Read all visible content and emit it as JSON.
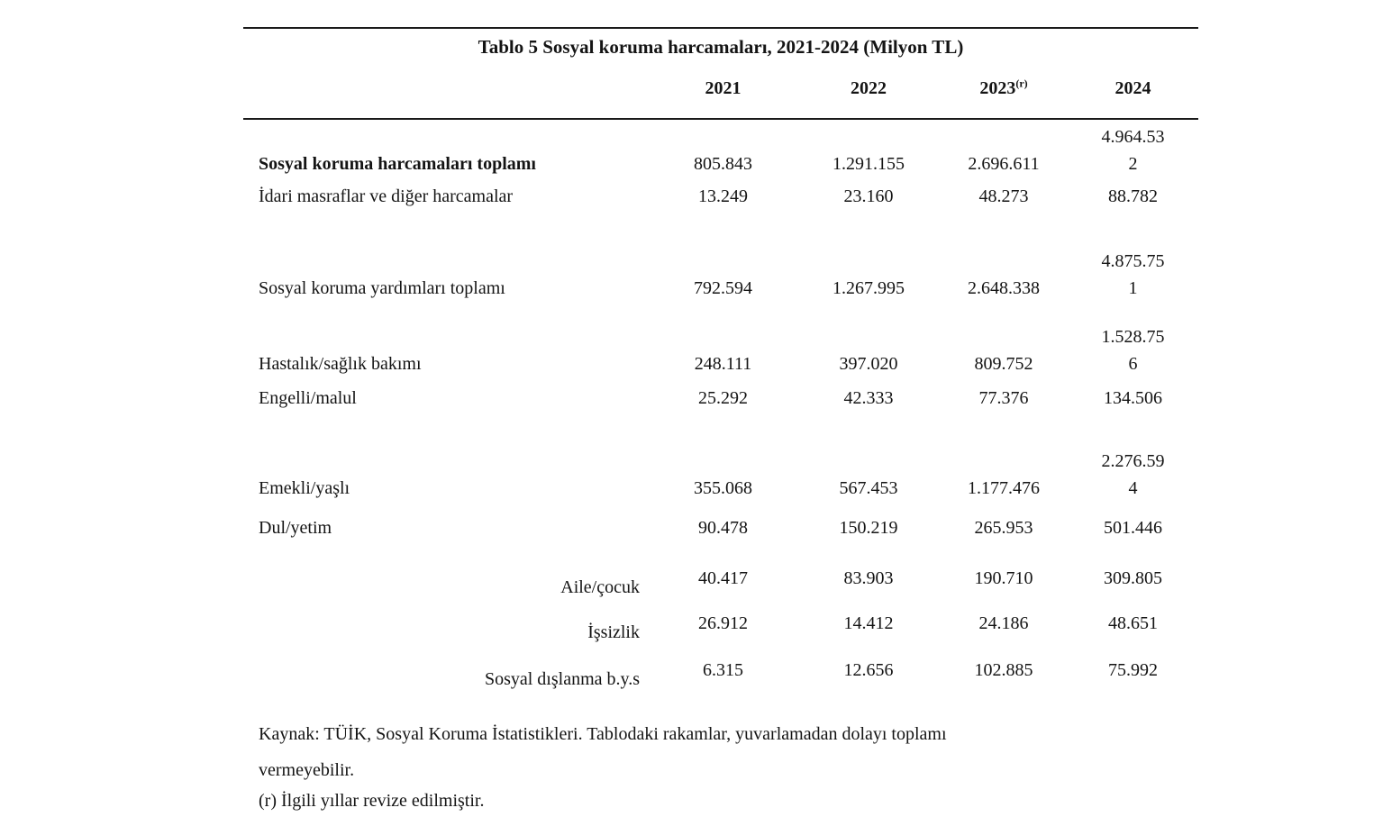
{
  "page": {
    "background_color": "#ffffff",
    "text_color": "#141414"
  },
  "table": {
    "title": "Tablo 5 Sosyal koruma harcamaları, 2021-2024 (Milyon TL)",
    "columns": [
      {
        "label": "2021",
        "sup": ""
      },
      {
        "label": "2022",
        "sup": ""
      },
      {
        "label": "2023",
        "sup": "(r)"
      },
      {
        "label": "2024",
        "sup": ""
      }
    ],
    "rows": [
      {
        "label": "Sosyal koruma harcamaları toplamı",
        "values": [
          "805.843",
          "1.291.155",
          "2.696.611",
          "4.964.53\n2"
        ]
      },
      {
        "label": "İdari masraflar ve diğer harcamalar",
        "values": [
          "13.249",
          "23.160",
          "48.273",
          "88.782"
        ]
      },
      {
        "label": "Sosyal koruma yardımları toplamı",
        "values": [
          "792.594",
          "1.267.995",
          "2.648.338",
          "4.875.75\n1"
        ]
      },
      {
        "label": "Hastalık/sağlık bakımı",
        "values": [
          "248.111",
          "397.020",
          "809.752",
          "1.528.75\n6"
        ]
      },
      {
        "label": "Engelli/malul",
        "values": [
          "25.292",
          "42.333",
          "77.376",
          "134.506"
        ]
      },
      {
        "label": "Emekli/yaşlı",
        "values": [
          "355.068",
          "567.453",
          "1.177.476",
          "2.276.59\n4"
        ]
      },
      {
        "label": "Dul/yetim",
        "values": [
          "90.478",
          "150.219",
          "265.953",
          "501.446"
        ]
      },
      {
        "label": "Aile/çocuk",
        "values": [
          "40.417",
          "83.903",
          "190.710",
          "309.805"
        ]
      },
      {
        "label": "İşsizlik",
        "values": [
          "26.912",
          "14.412",
          "24.186",
          "48.651"
        ]
      },
      {
        "label": "Sosyal dışlanma b.y.s",
        "values": [
          "6.315",
          "12.656",
          "102.885",
          "75.992"
        ]
      }
    ],
    "notes": {
      "source": "Kaynak: TÜİK, Sosyal Koruma İstatistikleri. Tablodaki rakamlar, yuvarlamadan dolayı toplamı\nvermeyebilir.",
      "revision": "(r) İlgili yıllar revize edilmiştir."
    }
  }
}
